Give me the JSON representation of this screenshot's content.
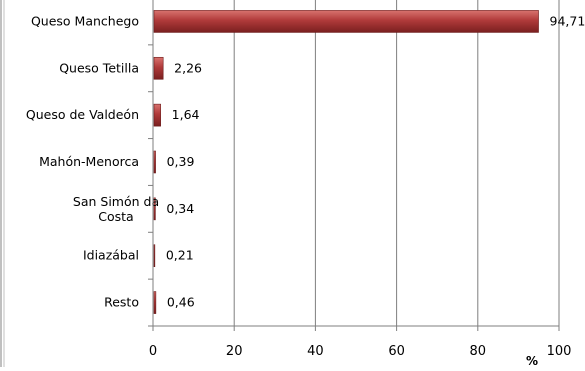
{
  "chart_data": {
    "type": "bar",
    "orientation": "horizontal",
    "categories": [
      "Queso Manchego",
      "Queso Tetilla",
      "Queso de Valdeón",
      "Mahón-Menorca",
      "San Simón da Costa",
      "Idiazábal",
      "Resto"
    ],
    "values": [
      94.71,
      2.26,
      1.64,
      0.39,
      0.34,
      0.21,
      0.46
    ],
    "value_labels": [
      "94,71",
      "2,26",
      "1,64",
      "0,39",
      "0,34",
      "0,21",
      "0,46"
    ],
    "xlim": [
      0,
      100
    ],
    "x_ticks": [
      0,
      20,
      40,
      60,
      80,
      100
    ],
    "x_tick_labels": [
      "0",
      "20",
      "40",
      "60",
      "80",
      "100"
    ],
    "xlabel": "%",
    "grid": true,
    "bar_color": "#b03a3a"
  }
}
